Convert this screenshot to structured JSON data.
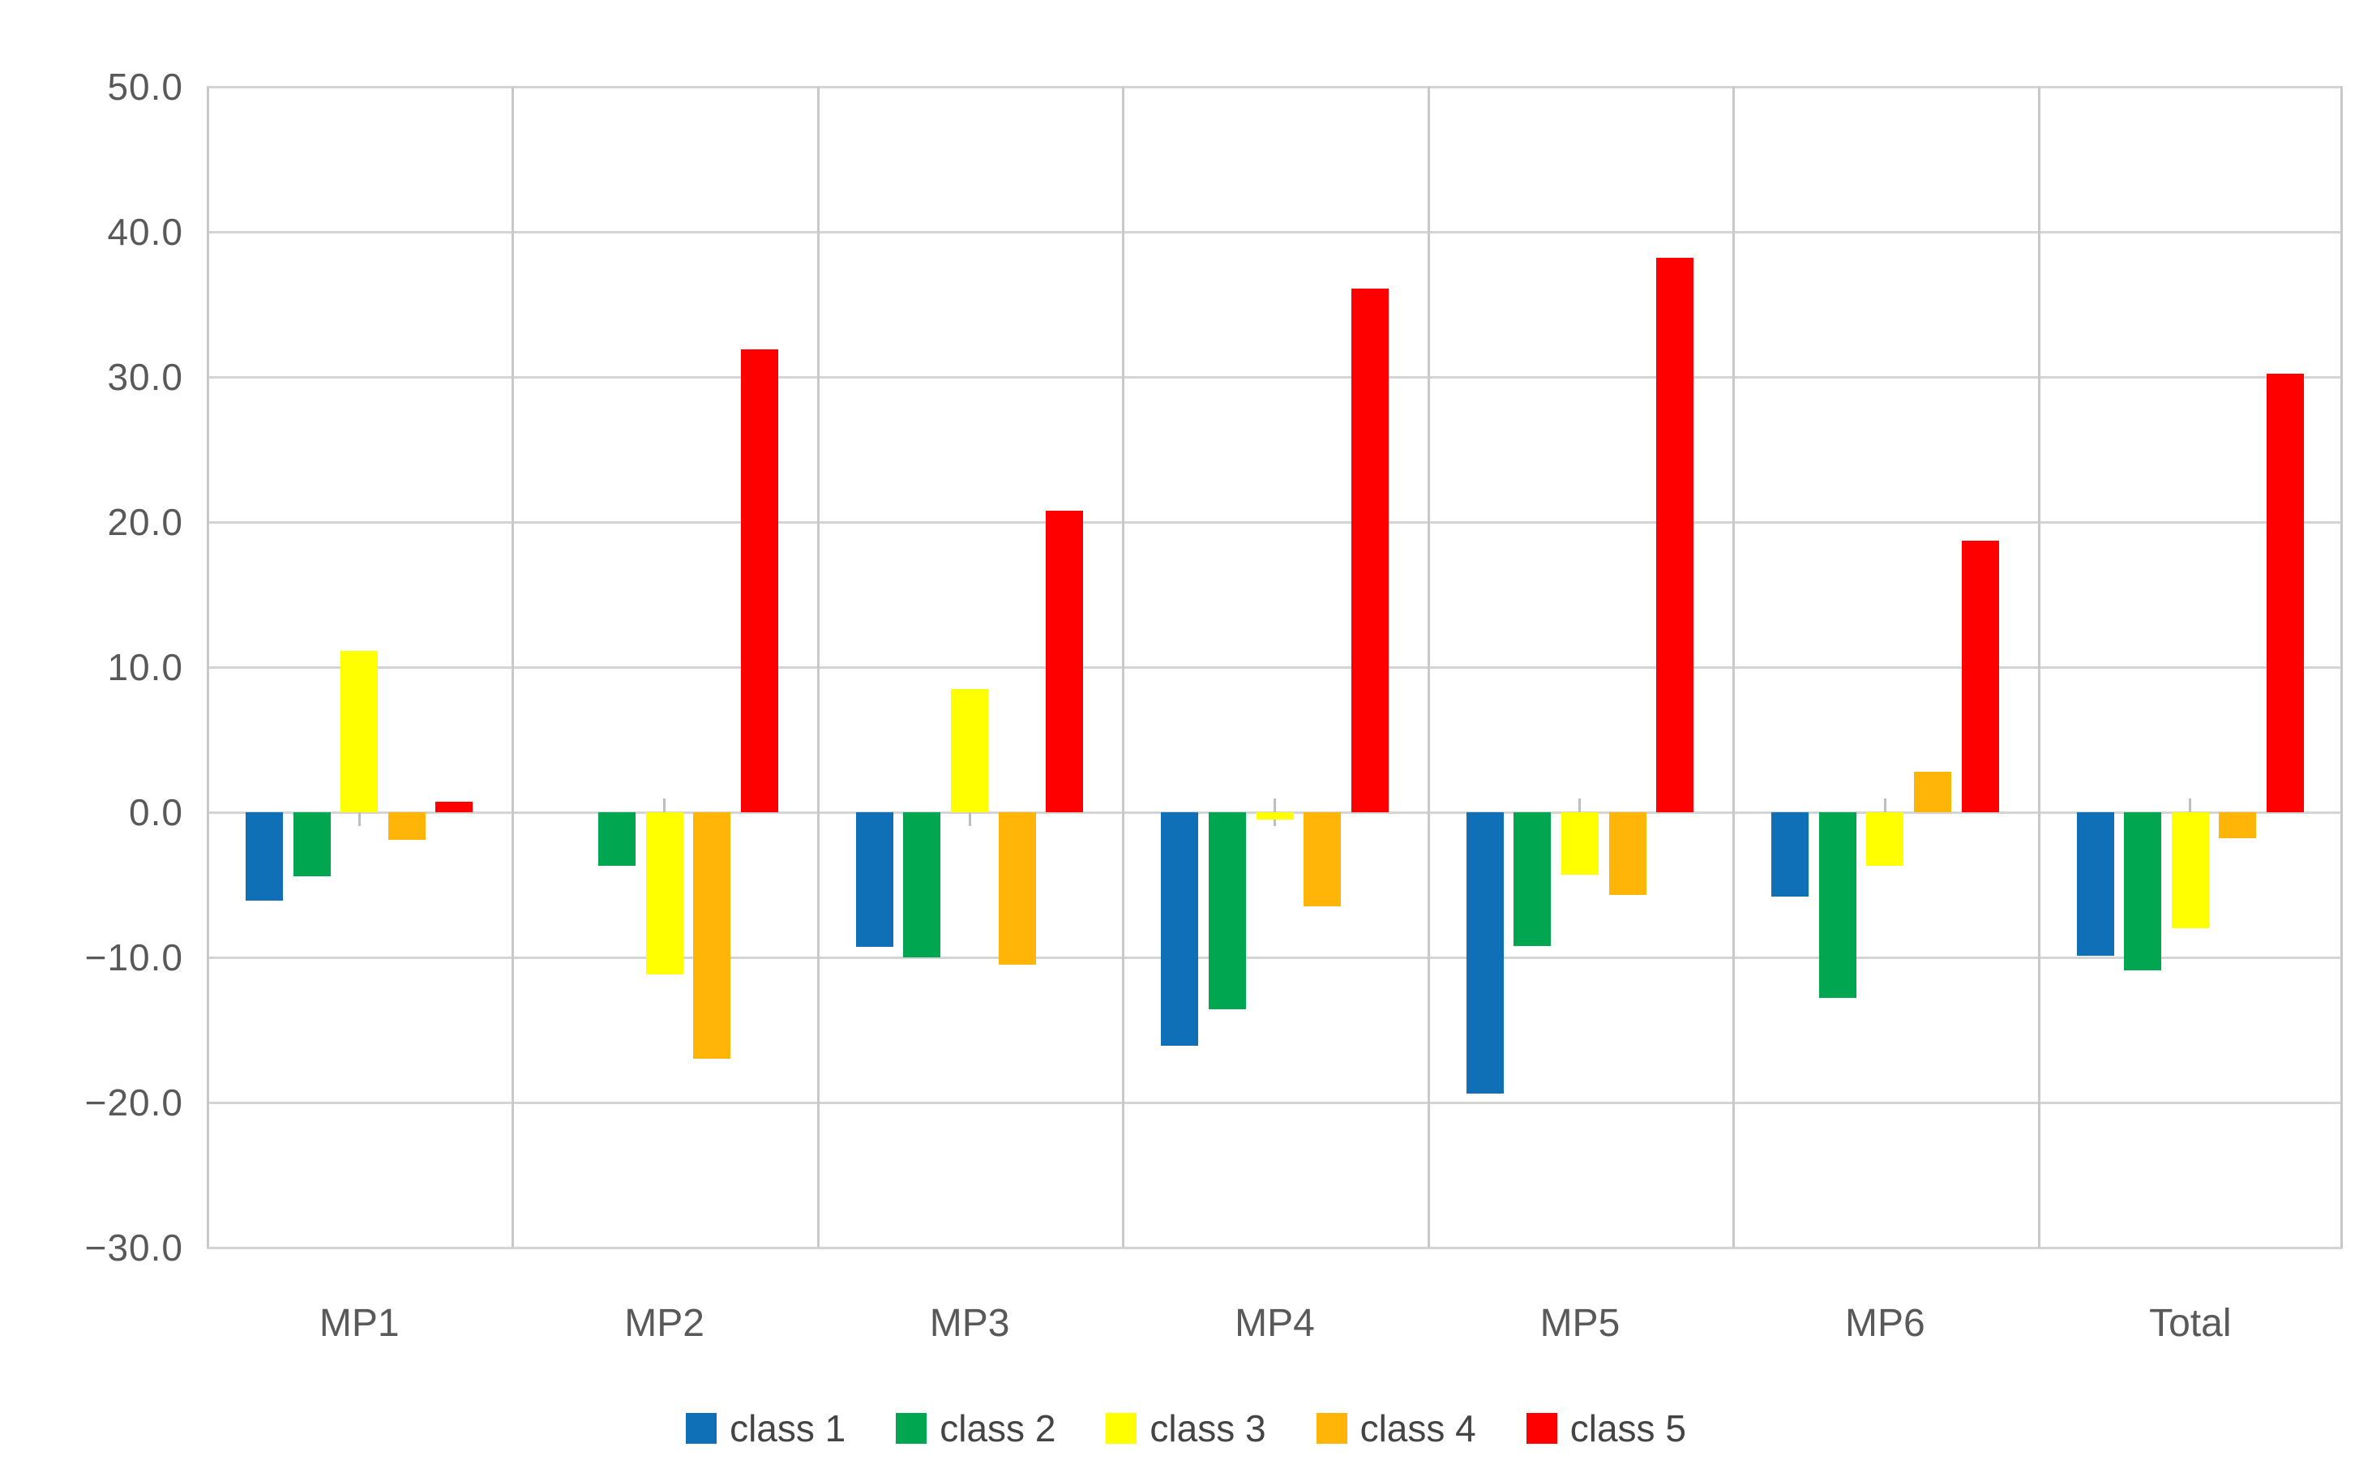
{
  "chart_data": {
    "type": "bar",
    "title": "",
    "xlabel": "",
    "ylabel": "",
    "categories": [
      "MP1",
      "MP2",
      "MP3",
      "MP4",
      "MP5",
      "MP6",
      "Total"
    ],
    "series": [
      {
        "name": "class 1",
        "color": "#0f70b8",
        "values": [
          -6.1,
          0.0,
          -9.3,
          -16.1,
          -19.4,
          -5.8,
          -9.9
        ]
      },
      {
        "name": "class 2",
        "color": "#00a650",
        "values": [
          -4.4,
          -3.7,
          -10.0,
          -13.6,
          -9.2,
          -12.8,
          -10.9
        ]
      },
      {
        "name": "class 3",
        "color": "#ffff00",
        "values": [
          11.1,
          -11.2,
          8.5,
          -0.5,
          -4.3,
          -3.7,
          -8.0
        ]
      },
      {
        "name": "class 4",
        "color": "#ffb408",
        "values": [
          -1.9,
          -17.0,
          -10.5,
          -6.5,
          -5.7,
          2.8,
          -1.8
        ]
      },
      {
        "name": "class 5",
        "color": "#fe0000",
        "values": [
          0.7,
          31.9,
          20.8,
          36.1,
          38.2,
          18.7,
          30.2
        ]
      }
    ],
    "ylim": [
      -30,
      50
    ],
    "ytick_step": 10,
    "ytick_labels": [
      "50.0",
      "40.0",
      "30.0",
      "20.0",
      "10.0",
      "0.0",
      "−10.0",
      "−20.0",
      "−30.0"
    ],
    "grid": true,
    "legend_position": "bottom"
  },
  "colors": {
    "axis_text": "#595959",
    "legend_text": "#444444",
    "h_gridline": "#d4d4d4",
    "v_gridline": "#c9c9c9",
    "axis_tick": "#bfbfbf",
    "background": "#ffffff"
  }
}
